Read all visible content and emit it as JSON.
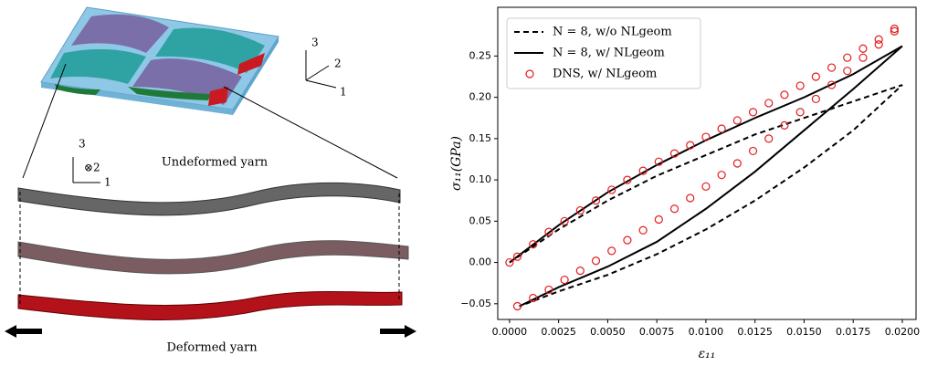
{
  "diagram": {
    "top_axes": {
      "a3": "3",
      "a2": "2",
      "a1": "1"
    },
    "yarn_axes": {
      "a3": "3",
      "a2": "⊗2",
      "a1": "1"
    },
    "undeformed": "Undeformed yarn",
    "deformed": "Deformed yarn"
  },
  "chart_data": {
    "type": "line",
    "xlabel": "ε₁₁",
    "ylabel": "σ₁₁(GPa)",
    "xlim": [
      -0.0006,
      0.0207
    ],
    "ylim": [
      -0.069,
      0.309
    ],
    "xticks": [
      {
        "value": 0,
        "label": "0.0000"
      },
      {
        "value": 0.0025,
        "label": "0.0025"
      },
      {
        "value": 0.005,
        "label": "0.0050"
      },
      {
        "value": 0.0075,
        "label": "0.0075"
      },
      {
        "value": 0.01,
        "label": "0.0100"
      },
      {
        "value": 0.0125,
        "label": "0.0125"
      },
      {
        "value": 0.015,
        "label": "0.0150"
      },
      {
        "value": 0.0175,
        "label": "0.0175"
      },
      {
        "value": 0.02,
        "label": "0.0200"
      }
    ],
    "yticks": [
      {
        "value": -0.05,
        "label": "−0.05"
      },
      {
        "value": 0,
        "label": "0.00"
      },
      {
        "value": 0.05,
        "label": "0.05"
      },
      {
        "value": 0.1,
        "label": "0.10"
      },
      {
        "value": 0.15,
        "label": "0.15"
      },
      {
        "value": 0.2,
        "label": "0.20"
      },
      {
        "value": 0.25,
        "label": "0.25"
      }
    ],
    "grid": false,
    "legend": "upper left",
    "series": [
      {
        "name": "N = 8, w/o NLgeom",
        "color": "#000000",
        "style": "dashed",
        "x": [
          0,
          0.0025,
          0.005,
          0.0075,
          0.01,
          0.0125,
          0.015,
          0.0175,
          0.02,
          0.0175,
          0.015,
          0.0125,
          0.01,
          0.0075,
          0.005,
          0.0025,
          0.0005
        ],
        "values": [
          0,
          0.04,
          0.075,
          0.105,
          0.13,
          0.155,
          0.175,
          0.195,
          0.215,
          0.16,
          0.115,
          0.075,
          0.04,
          0.01,
          -0.015,
          -0.035,
          -0.053
        ]
      },
      {
        "name": "N = 8, w/ NLgeom",
        "color": "#000000",
        "style": "solid",
        "x": [
          0,
          0.0025,
          0.005,
          0.0075,
          0.01,
          0.0125,
          0.015,
          0.0175,
          0.02,
          0.0175,
          0.015,
          0.0125,
          0.01,
          0.0075,
          0.005,
          0.0025,
          0.0005
        ],
        "values": [
          0,
          0.045,
          0.085,
          0.118,
          0.148,
          0.175,
          0.2,
          0.228,
          0.262,
          0.21,
          0.16,
          0.11,
          0.065,
          0.025,
          -0.005,
          -0.03,
          -0.053
        ]
      },
      {
        "name": "DNS, w/ NLgeom",
        "color": "#e41a1c",
        "style": "circle",
        "x": [
          0,
          0.0004,
          0.0012,
          0.002,
          0.0028,
          0.0036,
          0.0044,
          0.0052,
          0.006,
          0.0068,
          0.0076,
          0.0084,
          0.0092,
          0.01,
          0.0108,
          0.0116,
          0.0124,
          0.0132,
          0.014,
          0.0148,
          0.0156,
          0.0164,
          0.0172,
          0.018,
          0.0188,
          0.0196,
          0.0196,
          0.0188,
          0.018,
          0.0172,
          0.0164,
          0.0156,
          0.0148,
          0.014,
          0.0132,
          0.0124,
          0.0116,
          0.0108,
          0.01,
          0.0092,
          0.0084,
          0.0076,
          0.0068,
          0.006,
          0.0052,
          0.0044,
          0.0036,
          0.0028,
          0.002,
          0.0012,
          0.0004
        ],
        "values": [
          0,
          0.007,
          0.022,
          0.037,
          0.05,
          0.063,
          0.075,
          0.088,
          0.1,
          0.111,
          0.122,
          0.132,
          0.142,
          0.152,
          0.162,
          0.172,
          0.182,
          0.193,
          0.203,
          0.214,
          0.225,
          0.236,
          0.248,
          0.259,
          0.27,
          0.283,
          0.28,
          0.264,
          0.248,
          0.232,
          0.215,
          0.198,
          0.182,
          0.166,
          0.15,
          0.135,
          0.12,
          0.106,
          0.092,
          0.078,
          0.065,
          0.052,
          0.039,
          0.027,
          0.014,
          0.002,
          -0.01,
          -0.021,
          -0.033,
          -0.043,
          -0.053
        ]
      }
    ]
  }
}
